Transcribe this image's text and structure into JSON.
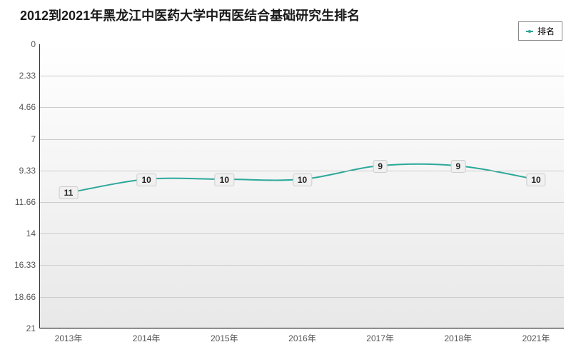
{
  "chart": {
    "type": "line",
    "title": "2012到2021年黑龙江中医药大学中西医结合基础研究生排名",
    "title_fontsize": 18,
    "title_color": "#1a1a1a",
    "legend": {
      "label": "排名",
      "color": "#2ca89a"
    },
    "plot": {
      "background_color_top": "#ffffff",
      "background_color_bottom": "#e8e8e8",
      "grid_color": "#cccccc"
    },
    "y_axis": {
      "min": 0,
      "max": 21,
      "inverted": true,
      "ticks": [
        0,
        2.33,
        4.66,
        7,
        9.33,
        11.66,
        14,
        16.33,
        18.66,
        21
      ],
      "tick_labels": [
        "0",
        "2.33",
        "4.66",
        "7",
        "9.33",
        "11.66",
        "14",
        "16.33",
        "18.66",
        "21"
      ]
    },
    "x_axis": {
      "categories": [
        "2013年",
        "2014年",
        "2015年",
        "2016年",
        "2017年",
        "2018年",
        "2021年"
      ]
    },
    "series": {
      "color": "#2ca89a",
      "line_width": 2,
      "marker_radius": 3,
      "values": [
        11,
        10,
        10,
        10,
        9,
        9,
        10
      ],
      "labels": [
        "11",
        "10",
        "10",
        "10",
        "9",
        "9",
        "10"
      ]
    }
  }
}
